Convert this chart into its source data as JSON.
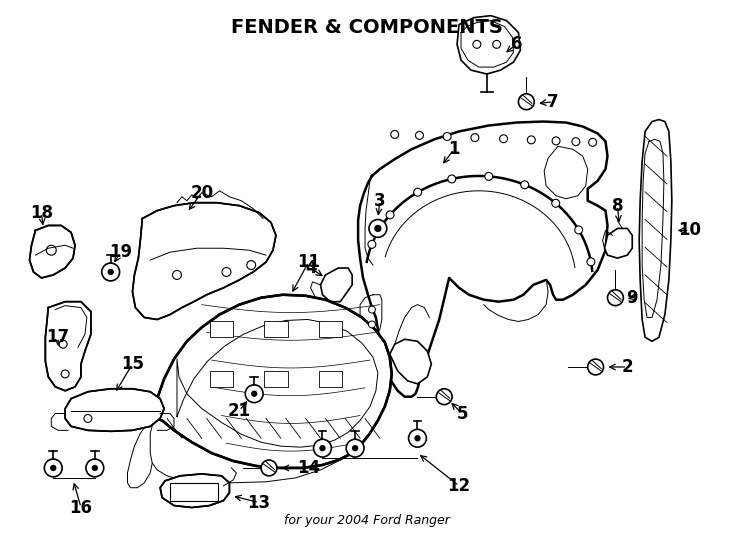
{
  "title": "FENDER & COMPONENTS",
  "subtitle": "for your 2004 Ford Ranger",
  "background_color": "#ffffff",
  "line_color": "#000000",
  "fig_width": 7.34,
  "fig_height": 5.4,
  "dpi": 100
}
